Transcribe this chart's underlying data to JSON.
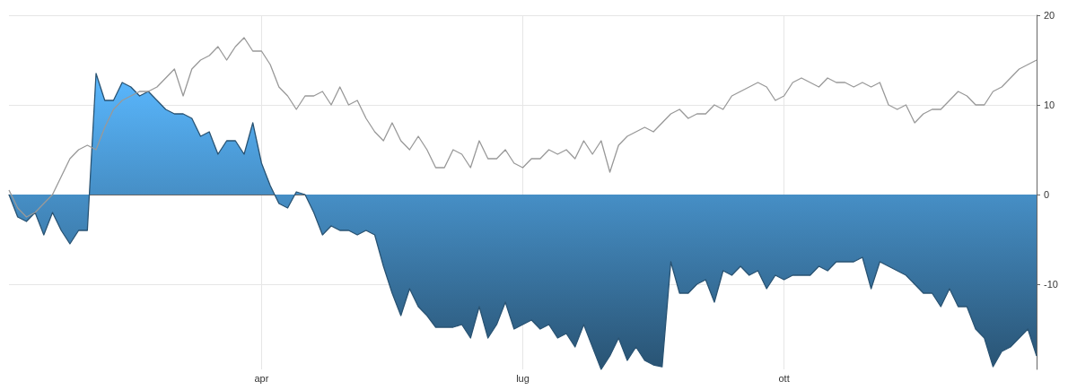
{
  "chart_data": {
    "type": "area",
    "categories": [
      null,
      null,
      null,
      null,
      null,
      null,
      null,
      null,
      null,
      null,
      null,
      null,
      null,
      null,
      null,
      null,
      null,
      null,
      null,
      null,
      null,
      null,
      null,
      null,
      null,
      null,
      null,
      null,
      null,
      "apr",
      null,
      null,
      null,
      null,
      null,
      null,
      null,
      null,
      null,
      null,
      null,
      null,
      null,
      null,
      null,
      null,
      null,
      null,
      null,
      null,
      null,
      null,
      null,
      null,
      null,
      null,
      null,
      null,
      null,
      "lug",
      null,
      null,
      null,
      null,
      null,
      null,
      null,
      null,
      null,
      null,
      null,
      null,
      null,
      null,
      null,
      null,
      null,
      null,
      null,
      null,
      null,
      null,
      null,
      null,
      null,
      null,
      null,
      null,
      null,
      "ott",
      null,
      null,
      null,
      null,
      null,
      null,
      null,
      null,
      null,
      null,
      null,
      null,
      null,
      null,
      null,
      null,
      null,
      null,
      null,
      null,
      null,
      null,
      null,
      null,
      null,
      null,
      null,
      null,
      null
    ],
    "series": [
      {
        "type": "area",
        "color": "#5ab8ff",
        "values": [
          0,
          -2.5,
          -3,
          -2,
          -4.5,
          -2,
          -4,
          -5.5,
          -4,
          -4,
          13.5,
          10.5,
          10.5,
          12.5,
          12,
          11,
          11.5,
          10.5,
          9.5,
          9,
          9,
          8.5,
          6.5,
          7,
          4.5,
          6,
          6,
          4.5,
          8,
          3.5,
          1,
          -1,
          -1.5,
          0.3,
          0,
          -2,
          -4.5,
          -3.5,
          -4,
          -4,
          -4.5,
          -4,
          -4.5,
          -8,
          -11,
          -13.5,
          -10.5,
          -12.5,
          -13.5,
          -14.8,
          -14.8,
          -14.8,
          -14.5,
          -16,
          -12.5,
          -16,
          -14.5,
          -12,
          -15,
          -14.5,
          -14,
          -15,
          -14.5,
          -16,
          -15.5,
          -17,
          -14.5,
          -17,
          -19.5,
          -18,
          -16,
          -18.5,
          -17,
          -18.5,
          -19,
          -19.2,
          -7.5,
          -11,
          -11,
          -10,
          -9.5,
          -12,
          -8.5,
          -9,
          -8,
          -9,
          -8.5,
          -10.5,
          -9,
          -9.5,
          -9,
          -9,
          -9,
          -8,
          -8.5,
          -7.5,
          -7.5,
          -7.5,
          -7,
          -10.5,
          -7.5,
          -8,
          -8.5,
          -9,
          -10,
          -11,
          -11,
          -12.5,
          -10.5,
          -12.5,
          -12.5,
          -15,
          -16,
          -19.2,
          -17.5,
          -17,
          -16,
          -15,
          -18
        ]
      },
      {
        "type": "line",
        "color": "#999999",
        "values": [
          0.5,
          -1.5,
          -2.5,
          -2,
          -1,
          0,
          2,
          4,
          5,
          5.5,
          5,
          7.5,
          9.5,
          10.5,
          11,
          11.5,
          11.5,
          12,
          13,
          14,
          11,
          14,
          15,
          15.5,
          16.5,
          15,
          16.5,
          17.5,
          16,
          16,
          14.5,
          12,
          11,
          9.5,
          11,
          11,
          11.5,
          10,
          12,
          10,
          10.5,
          8.5,
          7,
          6,
          8,
          6,
          5,
          6.5,
          5,
          3,
          3,
          5,
          4.5,
          3,
          6,
          4,
          4,
          5,
          3.5,
          3,
          4,
          4,
          5,
          4.5,
          5,
          4,
          6,
          4.5,
          6,
          2.5,
          5.5,
          6.5,
          7,
          7.5,
          7,
          8,
          9,
          9.5,
          8.5,
          9,
          9,
          10,
          9.5,
          11,
          11.5,
          12,
          12.5,
          12,
          10.5,
          11,
          12.5,
          13,
          12.5,
          12,
          13,
          12.5,
          12.5,
          12,
          12.5,
          12,
          12.5,
          10,
          9.5,
          10,
          8,
          9,
          9.5,
          9.5,
          10.5,
          11.5,
          11,
          10,
          10,
          11.5,
          12,
          13,
          14,
          14.5,
          15
        ]
      }
    ],
    "ylim": [
      -19.5,
      20
    ],
    "yticks": [
      -10,
      0,
      10,
      20
    ],
    "grid": true,
    "marker": "none"
  }
}
